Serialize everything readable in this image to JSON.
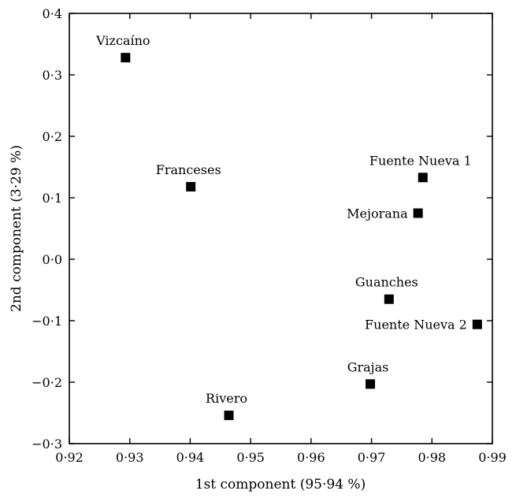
{
  "chart_data": {
    "type": "scatter",
    "xlabel": "1st component (95·94 %)",
    "ylabel": "2nd component (3·29 %)",
    "xlim": [
      0.92,
      0.99
    ],
    "ylim": [
      -0.3,
      0.4
    ],
    "xticks": [
      0.92,
      0.93,
      0.94,
      0.95,
      0.96,
      0.97,
      0.98,
      0.99
    ],
    "xtick_labels": [
      "0·92",
      "0·93",
      "0·94",
      "0·95",
      "0·96",
      "0·97",
      "0·98",
      "0·99"
    ],
    "yticks": [
      -0.3,
      -0.2,
      -0.1,
      0.0,
      0.1,
      0.2,
      0.3,
      0.4
    ],
    "ytick_labels": [
      "−0·3",
      "−0·2",
      "−0·1",
      "0·0",
      "0·1",
      "0·2",
      "0·3",
      "0·4"
    ],
    "grid": false,
    "marker": "square",
    "marker_color": "#000000",
    "points": [
      {
        "label": "Vizcaíno",
        "x": 0.9293,
        "y": 0.328,
        "label_pos": "above"
      },
      {
        "label": "Franceses",
        "x": 0.9401,
        "y": 0.118,
        "label_pos": "above"
      },
      {
        "label": "Fuente Nueva 1",
        "x": 0.9785,
        "y": 0.133,
        "label_pos": "above"
      },
      {
        "label": "Mejorana",
        "x": 0.9777,
        "y": 0.075,
        "label_pos": "left"
      },
      {
        "label": "Guanches",
        "x": 0.9729,
        "y": -0.065,
        "label_pos": "above"
      },
      {
        "label": "Fuente Nueva 2",
        "x": 0.9875,
        "y": -0.106,
        "label_pos": "left"
      },
      {
        "label": "Grajas",
        "x": 0.9698,
        "y": -0.203,
        "label_pos": "above"
      },
      {
        "label": "Rivero",
        "x": 0.9464,
        "y": -0.254,
        "label_pos": "above"
      }
    ]
  }
}
